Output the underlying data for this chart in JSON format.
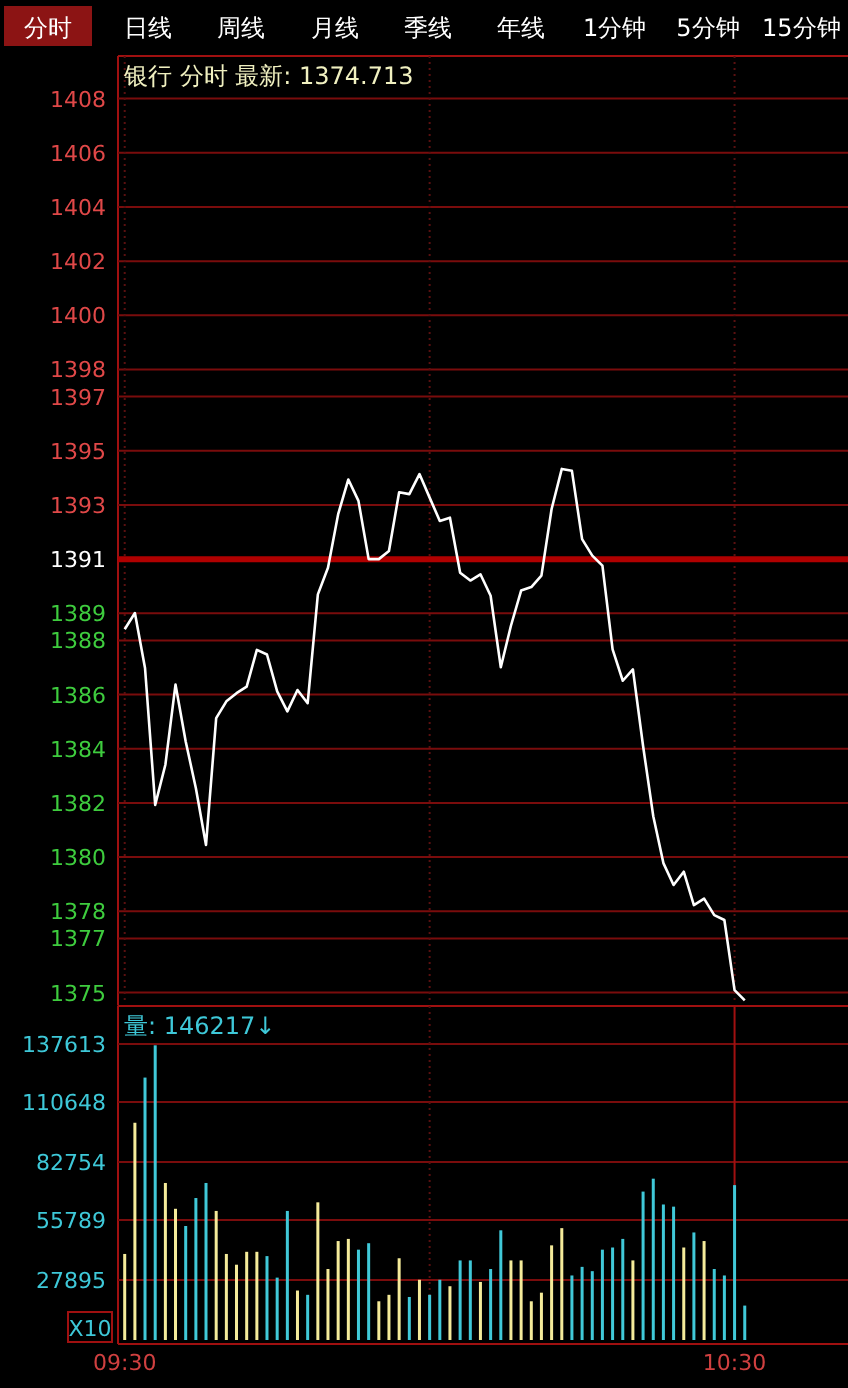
{
  "chart_data": [
    {
      "type": "line",
      "title": "银行 分时 最新: 1374.713",
      "annotations": [
        "分时",
        "日线",
        "周线",
        "月线",
        "季线",
        "年线",
        "1分钟",
        "5分钟",
        "15分钟"
      ],
      "x": [
        9.5,
        9.5167,
        9.5333,
        9.55,
        9.5667,
        9.5833,
        9.6,
        9.6167,
        9.6333,
        9.65,
        9.6667,
        9.6833,
        9.7,
        9.7167,
        9.7333,
        9.75,
        9.7667,
        9.7833,
        9.8,
        9.8167,
        9.8333,
        9.85,
        9.8667,
        9.8833,
        9.9,
        9.9167,
        9.9333,
        9.95,
        9.9667,
        9.9833,
        10.0,
        10.0167,
        10.0333,
        10.05,
        10.0667,
        10.0833,
        10.1,
        10.1167,
        10.1333,
        10.15,
        10.1667,
        10.1833,
        10.2,
        10.2167,
        10.2333,
        10.25,
        10.2667,
        10.2833,
        10.3,
        10.3167,
        10.3333,
        10.35,
        10.3667,
        10.3833,
        10.4,
        10.4167,
        10.4333,
        10.45,
        10.4667,
        10.4833,
        10.5,
        10.5167
      ],
      "series": [
        {
          "color": "#ffffff",
          "values": [
            1388.41,
            1389.01,
            1386.98,
            1381.93,
            1383.41,
            1386.37,
            1384.27,
            1382.54,
            1380.45,
            1385.13,
            1385.75,
            1386.05,
            1386.29,
            1387.65,
            1387.48,
            1386.12,
            1385.38,
            1386.17,
            1385.68,
            1389.7,
            1390.68,
            1392.66,
            1393.94,
            1393.15,
            1391.0,
            1391.0,
            1391.3,
            1393.47,
            1393.4,
            1394.14,
            1393.27,
            1392.41,
            1392.53,
            1390.5,
            1390.21,
            1390.44,
            1389.65,
            1387.01,
            1388.54,
            1389.84,
            1389.97,
            1390.39,
            1392.85,
            1394.33,
            1394.26,
            1391.74,
            1391.13,
            1390.76,
            1387.67,
            1386.51,
            1386.93,
            1384.1,
            1381.51,
            1379.78,
            1378.97,
            1379.46,
            1378.23,
            1378.47,
            1377.86,
            1377.68,
            1375.09,
            1374.71
          ]
        }
      ],
      "xlim": [
        9.489,
        10.686
      ],
      "xticks": [
        {
          "value": 9.5,
          "label": null
        },
        {
          "value": 10.0,
          "label": null
        },
        {
          "value": 10.5,
          "label": null
        }
      ],
      "ylim": [
        1374.6,
        1408
      ],
      "yticks": [
        1408,
        1406,
        1404,
        1402,
        1400,
        1398,
        1397,
        1395,
        1393,
        1391,
        1389,
        1388,
        1386,
        1384,
        1382,
        1380,
        1378,
        1377,
        1375
      ],
      "ref_lines": [
        {
          "axis": "y",
          "value": 1391,
          "color": "#b00000"
        }
      ],
      "tick_labels": "y",
      "grid": true
    },
    {
      "type": "bar",
      "title": "量: 146217↓",
      "ylabel": "X10",
      "x": [
        9.5,
        9.5167,
        9.5333,
        9.55,
        9.5667,
        9.5833,
        9.6,
        9.6167,
        9.6333,
        9.65,
        9.6667,
        9.6833,
        9.7,
        9.7167,
        9.7333,
        9.75,
        9.7667,
        9.7833,
        9.8,
        9.8167,
        9.8333,
        9.85,
        9.8667,
        9.8833,
        9.9,
        9.9167,
        9.9333,
        9.95,
        9.9667,
        9.9833,
        10.0,
        10.0167,
        10.0333,
        10.05,
        10.0667,
        10.0833,
        10.1,
        10.1167,
        10.1333,
        10.15,
        10.1667,
        10.1833,
        10.2,
        10.2167,
        10.2333,
        10.25,
        10.2667,
        10.2833,
        10.3,
        10.3167,
        10.3333,
        10.35,
        10.3667,
        10.3833,
        10.4,
        10.4167,
        10.4333,
        10.45,
        10.4667,
        10.4833,
        10.5,
        10.5167
      ],
      "values": [
        40000,
        101000,
        122000,
        137000,
        73000,
        61000,
        53000,
        66000,
        73000,
        60000,
        40000,
        35000,
        41000,
        41000,
        39000,
        29000,
        60000,
        23000,
        21000,
        64000,
        33000,
        46000,
        47000,
        42000,
        45000,
        18000,
        21000,
        38000,
        20000,
        28000,
        21000,
        28000,
        25000,
        37000,
        37000,
        27000,
        33000,
        51000,
        37000,
        37000,
        18000,
        22000,
        44000,
        52000,
        30000,
        34000,
        32000,
        42000,
        43000,
        47000,
        37000,
        69000,
        75000,
        63000,
        62000,
        43000,
        50000,
        46000,
        33000,
        30000,
        72000,
        16000
      ],
      "colors": [
        "#f5eb9a",
        "#f5eb9a",
        "#40c8d8",
        "#40c8d8",
        "#f5eb9a",
        "#f5eb9a",
        "#40c8d8",
        "#40c8d8",
        "#40c8d8",
        "#f5eb9a",
        "#f5eb9a",
        "#f5eb9a",
        "#f5eb9a",
        "#f5eb9a",
        "#40c8d8",
        "#40c8d8",
        "#40c8d8",
        "#f5eb9a",
        "#40c8d8",
        "#f5eb9a",
        "#f5eb9a",
        "#f5eb9a",
        "#f5eb9a",
        "#40c8d8",
        "#40c8d8",
        "#f5eb9a",
        "#f5eb9a",
        "#f5eb9a",
        "#40c8d8",
        "#f5eb9a",
        "#40c8d8",
        "#40c8d8",
        "#f5eb9a",
        "#40c8d8",
        "#40c8d8",
        "#f5eb9a",
        "#40c8d8",
        "#40c8d8",
        "#f5eb9a",
        "#f5eb9a",
        "#f5eb9a",
        "#f5eb9a",
        "#f5eb9a",
        "#f5eb9a",
        "#40c8d8",
        "#40c8d8",
        "#40c8d8",
        "#40c8d8",
        "#40c8d8",
        "#40c8d8",
        "#f5eb9a",
        "#40c8d8",
        "#40c8d8",
        "#40c8d8",
        "#40c8d8",
        "#f5eb9a",
        "#40c8d8",
        "#f5eb9a",
        "#40c8d8",
        "#40c8d8",
        "#40c8d8",
        "#40c8d8"
      ],
      "xlim": [
        9.489,
        10.686
      ],
      "xticks": [
        {
          "value": 9.5,
          "label": "09:30"
        },
        {
          "value": 10.0,
          "label": null
        },
        {
          "value": 10.5,
          "label": "10:30"
        }
      ],
      "ylim": [
        0,
        137613
      ],
      "yticks": [
        27895,
        55789,
        82754,
        110648,
        137613
      ],
      "grid": "y",
      "ref_lines": [
        {
          "axis": "x",
          "value": 10.0,
          "color": "#5a1010",
          "line_style": "dotted"
        },
        {
          "axis": "x",
          "value": 10.5,
          "color": "#a01010"
        }
      ]
    }
  ]
}
